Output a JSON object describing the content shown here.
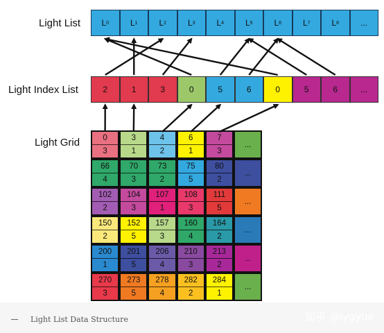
{
  "labels": {
    "light_list": "Light List",
    "light_index_list": "Light Index List",
    "light_grid": "Light Grid"
  },
  "light_list": [
    {
      "base": "L",
      "sub": "0"
    },
    {
      "base": "L",
      "sub": "1"
    },
    {
      "base": "L",
      "sub": "2"
    },
    {
      "base": "L",
      "sub": "3"
    },
    {
      "base": "L",
      "sub": "4"
    },
    {
      "base": "L",
      "sub": "5"
    },
    {
      "base": "L",
      "sub": "6"
    },
    {
      "base": "L",
      "sub": "7"
    },
    {
      "base": "L",
      "sub": "8"
    },
    {
      "base": "...",
      "sub": ""
    }
  ],
  "light_index_list": [
    {
      "value": "2",
      "color": "#e23a4e"
    },
    {
      "value": "1",
      "color": "#e23a4e"
    },
    {
      "value": "3",
      "color": "#e23a4e"
    },
    {
      "value": "0",
      "color": "#9cc86a"
    },
    {
      "value": "5",
      "color": "#33a9e0"
    },
    {
      "value": "6",
      "color": "#33a9e0"
    },
    {
      "value": "0",
      "color": "#fff200"
    },
    {
      "value": "5",
      "color": "#b8288f"
    },
    {
      "value": "6",
      "color": "#b8288f"
    },
    {
      "value": "...",
      "color": "#b8288f"
    }
  ],
  "light_grid": [
    [
      {
        "offset": "0",
        "count": "3",
        "color": "#e87080"
      },
      {
        "offset": "3",
        "count": "1",
        "color": "#b8d98a"
      },
      {
        "offset": "4",
        "count": "2",
        "color": "#6ec3ea"
      },
      {
        "offset": "6",
        "count": "1",
        "color": "#fff200"
      },
      {
        "offset": "7",
        "count": "3",
        "color": "#c44a9e"
      },
      {
        "offset": "...",
        "count": "",
        "color": "#6ab04c"
      }
    ],
    [
      {
        "offset": "66",
        "count": "4",
        "color": "#2fa86a"
      },
      {
        "offset": "70",
        "count": "3",
        "color": "#2fa86a"
      },
      {
        "offset": "73",
        "count": "2",
        "color": "#2fa86a"
      },
      {
        "offset": "75",
        "count": "5",
        "color": "#33a9e0"
      },
      {
        "offset": "80",
        "count": "2",
        "color": "#3e4fa0"
      },
      {
        "offset": "...",
        "count": "",
        "color": "#3e4fa0"
      }
    ],
    [
      {
        "offset": "102",
        "count": "2",
        "color": "#a35cb3"
      },
      {
        "offset": "104",
        "count": "3",
        "color": "#c44a9e"
      },
      {
        "offset": "107",
        "count": "1",
        "color": "#e0207a"
      },
      {
        "offset": "108",
        "count": "3",
        "color": "#e8396a"
      },
      {
        "offset": "111",
        "count": "5",
        "color": "#e23a3a"
      },
      {
        "offset": "...",
        "count": "",
        "color": "#f07a22"
      }
    ],
    [
      {
        "offset": "150",
        "count": "2",
        "color": "#fbe87a"
      },
      {
        "offset": "152",
        "count": "5",
        "color": "#fff200"
      },
      {
        "offset": "157",
        "count": "3",
        "color": "#b8d98a"
      },
      {
        "offset": "160",
        "count": "4",
        "color": "#2fa86a"
      },
      {
        "offset": "164",
        "count": "2",
        "color": "#2a9aa8"
      },
      {
        "offset": "...",
        "count": "",
        "color": "#2a7ab8"
      }
    ],
    [
      {
        "offset": "200",
        "count": "1",
        "color": "#2a8ad0"
      },
      {
        "offset": "201",
        "count": "5",
        "color": "#3e4fa0"
      },
      {
        "offset": "206",
        "count": "4",
        "color": "#6a5aa8"
      },
      {
        "offset": "210",
        "count": "3",
        "color": "#8a4aa0"
      },
      {
        "offset": "213",
        "count": "2",
        "color": "#a8289a"
      },
      {
        "offset": "...",
        "count": "",
        "color": "#c0208a"
      }
    ],
    [
      {
        "offset": "270",
        "count": "3",
        "color": "#e8394a"
      },
      {
        "offset": "273",
        "count": "5",
        "color": "#f07a22"
      },
      {
        "offset": "278",
        "count": "4",
        "color": "#f5a020"
      },
      {
        "offset": "282",
        "count": "2",
        "color": "#fbc020"
      },
      {
        "offset": "284",
        "count": "1",
        "color": "#fff200"
      },
      {
        "offset": "...",
        "count": "",
        "color": "#6ab04c"
      }
    ]
  ],
  "light_list_color": "#33a9e0",
  "caption": "Light List Data Structure",
  "watermark": "知乎 @lygyue",
  "arrows": {
    "grid_to_index": [
      [
        0,
        0
      ],
      [
        1,
        1
      ],
      [
        2,
        3
      ],
      [
        3,
        4
      ],
      [
        4,
        6
      ]
    ],
    "index_to_light": [
      [
        0,
        2
      ],
      [
        1,
        1
      ],
      [
        2,
        3
      ],
      [
        3,
        0
      ],
      [
        4,
        5
      ],
      [
        5,
        6
      ],
      [
        6,
        0
      ],
      [
        7,
        5
      ],
      [
        8,
        6
      ]
    ]
  }
}
